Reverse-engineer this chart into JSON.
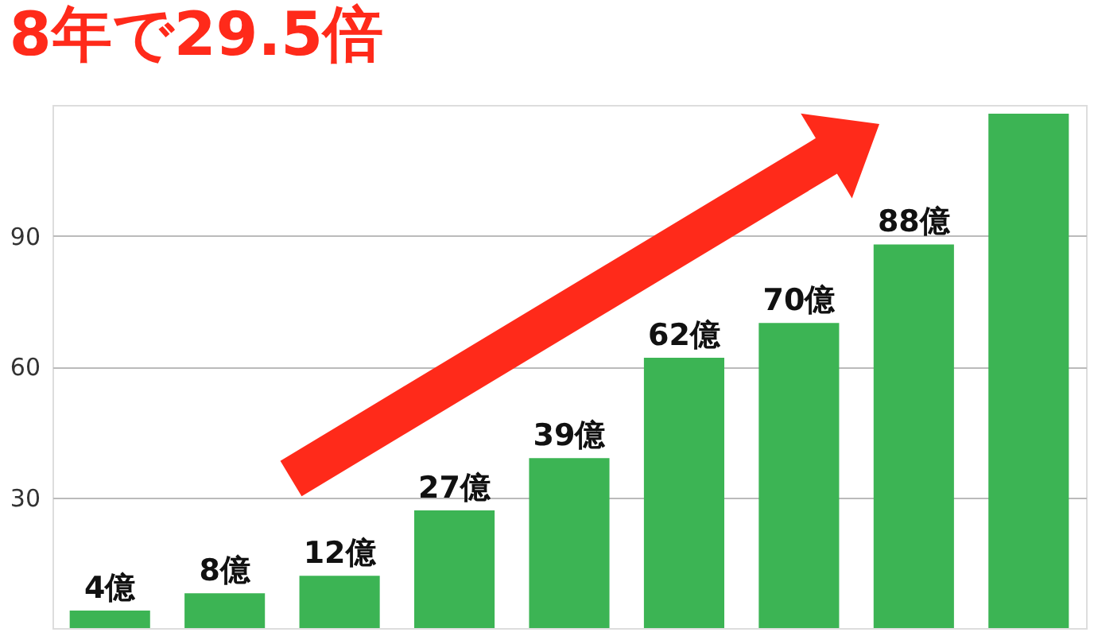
{
  "chart_data": {
    "type": "bar",
    "title": "8年で29.5倍",
    "categories": [
      null,
      null,
      null,
      null,
      null,
      null,
      null,
      null,
      null
    ],
    "values": [
      4,
      8,
      12,
      27,
      39,
      62,
      70,
      88,
      118
    ],
    "value_labels": [
      "4億",
      "8億",
      "12億",
      "27億",
      "39億",
      "62億",
      "70億",
      "88億",
      null
    ],
    "color": "#3cb454",
    "ylim": [
      0,
      120
    ],
    "yticks": [
      30,
      60,
      90
    ],
    "grid": "y",
    "tick_labels": "y"
  }
}
